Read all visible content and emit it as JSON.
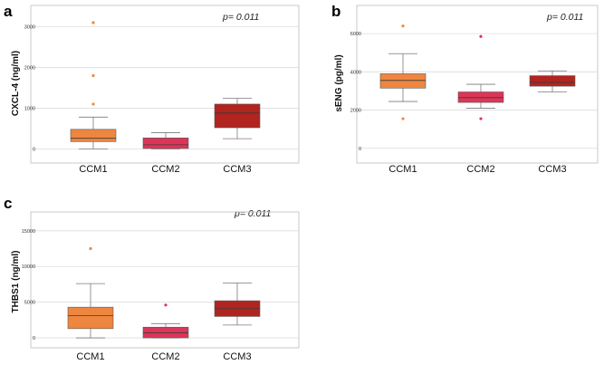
{
  "colors": {
    "CCM1": "#ee8640",
    "CCM2": "#dd3557",
    "CCM3": "#b1241f",
    "grid": "#dcdcdc",
    "frame": "#bdbdbd",
    "whisker": "#7a7a7a"
  },
  "chart_data": [
    {
      "type": "box",
      "panel_letter": "a",
      "p_value": "p= 0.011",
      "ylabel": "CXCL-4 (ng/ml)",
      "categories": [
        "CCM1",
        "CCM2",
        "CCM3"
      ],
      "ylim": [
        -80,
        3300
      ],
      "yticks": [
        0,
        1000,
        2000,
        3000
      ],
      "grid": true,
      "boxes": [
        {
          "name": "CCM1",
          "whisker_low": 0,
          "q1": 180,
          "median": 260,
          "q3": 480,
          "whisker_high": 780,
          "outliers": [
            1100,
            1800,
            3100
          ]
        },
        {
          "name": "CCM2",
          "whisker_low": 0,
          "q1": 10,
          "median": 100,
          "q3": 270,
          "whisker_high": 400,
          "outliers": []
        },
        {
          "name": "CCM3",
          "whisker_low": 250,
          "q1": 520,
          "median": 880,
          "q3": 1100,
          "whisker_high": 1240,
          "outliers": []
        }
      ]
    },
    {
      "type": "box",
      "panel_letter": "b",
      "p_value": "p= 0.011",
      "ylabel": "sENG (pg/ml)",
      "categories": [
        "CCM1",
        "CCM2",
        "CCM3"
      ],
      "ylim": [
        -200,
        7000
      ],
      "yticks": [
        0,
        2000,
        4000,
        6000
      ],
      "grid": true,
      "boxes": [
        {
          "name": "CCM1",
          "whisker_low": 2450,
          "q1": 3150,
          "median": 3550,
          "q3": 3900,
          "whisker_high": 4950,
          "outliers": [
            1550,
            6400
          ]
        },
        {
          "name": "CCM2",
          "whisker_low": 2100,
          "q1": 2400,
          "median": 2650,
          "q3": 2950,
          "whisker_high": 3350,
          "outliers": [
            1550,
            5850
          ]
        },
        {
          "name": "CCM3",
          "whisker_low": 2950,
          "q1": 3250,
          "median": 3450,
          "q3": 3800,
          "whisker_high": 4050,
          "outliers": []
        }
      ]
    },
    {
      "type": "box",
      "panel_letter": "c",
      "p_value": "p= 0.011",
      "ylabel": "THBS1 (ng/ml)",
      "categories": [
        "CCM1",
        "CCM2",
        "CCM3"
      ],
      "ylim": [
        -500,
        16500
      ],
      "yticks": [
        0,
        5000,
        10000,
        15000
      ],
      "grid": true,
      "boxes": [
        {
          "name": "CCM1",
          "whisker_low": 0,
          "q1": 1300,
          "median": 3100,
          "q3": 4300,
          "whisker_high": 7600,
          "outliers": [
            12500
          ]
        },
        {
          "name": "CCM2",
          "whisker_low": 0,
          "q1": 0,
          "median": 700,
          "q3": 1500,
          "whisker_high": 2000,
          "outliers": [
            4600
          ]
        },
        {
          "name": "CCM3",
          "whisker_low": 1800,
          "q1": 3000,
          "median": 4100,
          "q3": 5200,
          "whisker_high": 7700,
          "outliers": []
        }
      ]
    }
  ]
}
